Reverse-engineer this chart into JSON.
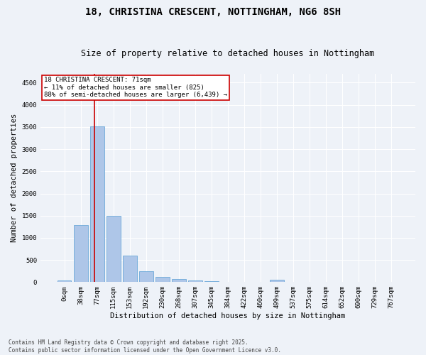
{
  "title_line1": "18, CHRISTINA CRESCENT, NOTTINGHAM, NG6 8SH",
  "title_line2": "Size of property relative to detached houses in Nottingham",
  "xlabel": "Distribution of detached houses by size in Nottingham",
  "ylabel": "Number of detached properties",
  "bar_labels": [
    "0sqm",
    "38sqm",
    "77sqm",
    "115sqm",
    "153sqm",
    "192sqm",
    "230sqm",
    "268sqm",
    "307sqm",
    "345sqm",
    "384sqm",
    "422sqm",
    "460sqm",
    "499sqm",
    "537sqm",
    "575sqm",
    "614sqm",
    "652sqm",
    "690sqm",
    "729sqm",
    "767sqm"
  ],
  "bar_values": [
    30,
    1280,
    3520,
    1490,
    600,
    250,
    120,
    75,
    35,
    20,
    5,
    0,
    0,
    55,
    0,
    0,
    0,
    0,
    0,
    0,
    0
  ],
  "bar_color": "#aec6e8",
  "bar_edge_color": "#5a9fd4",
  "vline_x": 1.85,
  "vline_color": "#cc0000",
  "annotation_text": "18 CHRISTINA CRESCENT: 71sqm\n← 11% of detached houses are smaller (825)\n88% of semi-detached houses are larger (6,439) →",
  "annotation_box_color": "#ffffff",
  "annotation_box_edge_color": "#cc0000",
  "ylim": [
    0,
    4700
  ],
  "yticks": [
    0,
    500,
    1000,
    1500,
    2000,
    2500,
    3000,
    3500,
    4000,
    4500
  ],
  "background_color": "#eef2f8",
  "plot_bg_color": "#eef2f8",
  "footer_text": "Contains HM Land Registry data © Crown copyright and database right 2025.\nContains public sector information licensed under the Open Government Licence v3.0.",
  "title_fontsize": 10,
  "subtitle_fontsize": 8.5,
  "axis_label_fontsize": 7.5,
  "tick_fontsize": 6.5,
  "annotation_fontsize": 6.5,
  "footer_fontsize": 5.5
}
